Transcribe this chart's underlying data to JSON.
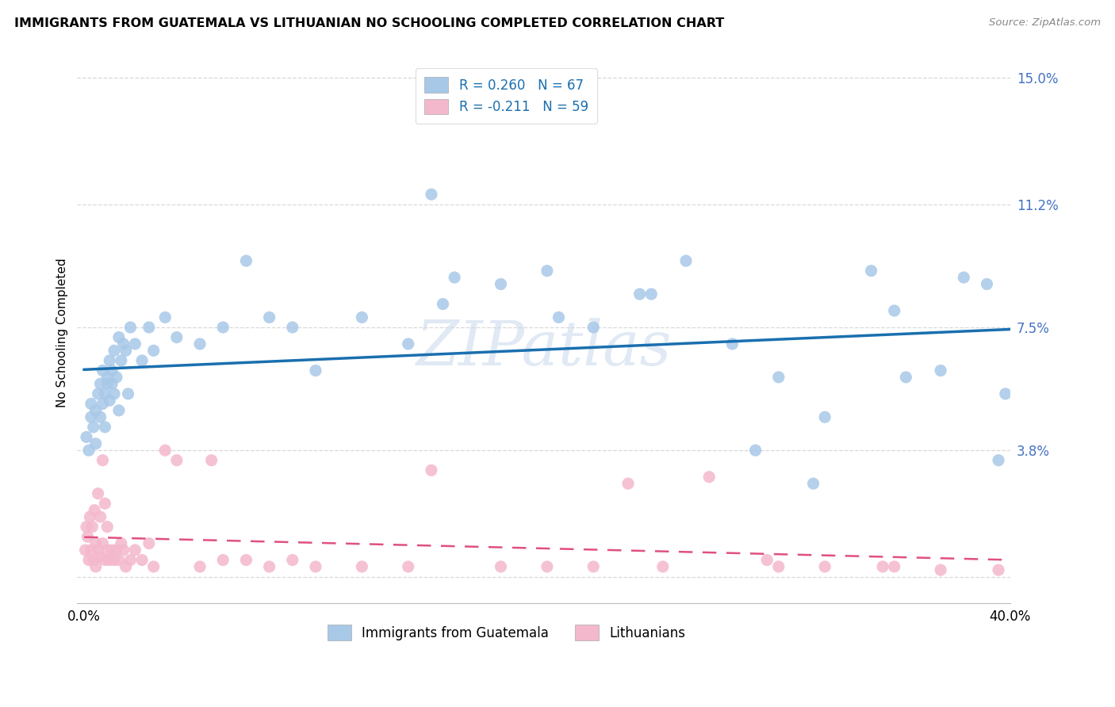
{
  "title": "IMMIGRANTS FROM GUATEMALA VS LITHUANIAN NO SCHOOLING COMPLETED CORRELATION CHART",
  "source": "Source: ZipAtlas.com",
  "ylabel": "No Schooling Completed",
  "xlim": [
    -0.3,
    40.0
  ],
  "ylim": [
    -0.8,
    15.5
  ],
  "y_gridlines": [
    0.0,
    3.8,
    7.5,
    11.2,
    15.0
  ],
  "y_tick_labels": [
    "",
    "3.8%",
    "7.5%",
    "11.2%",
    "15.0%"
  ],
  "x_tick_positions": [
    0,
    10,
    20,
    30,
    40
  ],
  "x_tick_labels": [
    "0.0%",
    "",
    "",
    "",
    "40.0%"
  ],
  "blue_color": "#a8c8e8",
  "pink_color": "#f4b8cc",
  "trend_blue_color": "#1a6faf",
  "trend_pink_color": "#e05080",
  "legend_line1_r": "R = 0.260",
  "legend_line1_n": "N = 67",
  "legend_line2_r": "R = -0.211",
  "legend_line2_n": "N = 59",
  "legend_label1": "Immigrants from Guatemala",
  "legend_label2": "Lithuanians",
  "blue_x": [
    0.1,
    0.2,
    0.3,
    0.3,
    0.4,
    0.5,
    0.5,
    0.6,
    0.7,
    0.7,
    0.8,
    0.8,
    0.9,
    0.9,
    1.0,
    1.0,
    1.1,
    1.1,
    1.2,
    1.2,
    1.3,
    1.3,
    1.4,
    1.5,
    1.5,
    1.6,
    1.7,
    1.8,
    1.9,
    2.0,
    2.2,
    2.5,
    2.8,
    3.0,
    3.5,
    4.0,
    5.0,
    6.0,
    7.0,
    8.0,
    9.0,
    10.0,
    12.0,
    14.0,
    15.0,
    16.0,
    18.0,
    20.0,
    22.0,
    24.0,
    26.0,
    28.0,
    30.0,
    32.0,
    34.0,
    35.0,
    37.0,
    38.0,
    39.0,
    39.5,
    39.8,
    15.5,
    20.5,
    24.5,
    29.0,
    31.5,
    35.5
  ],
  "blue_y": [
    4.2,
    3.8,
    5.2,
    4.8,
    4.5,
    5.0,
    4.0,
    5.5,
    4.8,
    5.8,
    5.2,
    6.2,
    5.5,
    4.5,
    6.0,
    5.8,
    5.3,
    6.5,
    5.8,
    6.2,
    5.5,
    6.8,
    6.0,
    7.2,
    5.0,
    6.5,
    7.0,
    6.8,
    5.5,
    7.5,
    7.0,
    6.5,
    7.5,
    6.8,
    7.8,
    7.2,
    7.0,
    7.5,
    9.5,
    7.8,
    7.5,
    6.2,
    7.8,
    7.0,
    11.5,
    9.0,
    8.8,
    9.2,
    7.5,
    8.5,
    9.5,
    7.0,
    6.0,
    4.8,
    9.2,
    8.0,
    6.2,
    9.0,
    8.8,
    3.5,
    5.5,
    8.2,
    7.8,
    8.5,
    3.8,
    2.8,
    6.0
  ],
  "pink_x": [
    0.05,
    0.1,
    0.15,
    0.2,
    0.25,
    0.3,
    0.35,
    0.4,
    0.45,
    0.5,
    0.5,
    0.6,
    0.6,
    0.7,
    0.7,
    0.8,
    0.8,
    0.9,
    0.9,
    1.0,
    1.0,
    1.1,
    1.2,
    1.3,
    1.4,
    1.5,
    1.6,
    1.7,
    1.8,
    2.0,
    2.2,
    2.5,
    2.8,
    3.0,
    3.5,
    4.0,
    5.0,
    5.5,
    6.0,
    7.0,
    8.0,
    9.0,
    10.0,
    12.0,
    14.0,
    15.0,
    18.0,
    20.0,
    22.0,
    25.0,
    27.0,
    30.0,
    32.0,
    35.0,
    37.0,
    23.5,
    29.5,
    34.5,
    39.5
  ],
  "pink_y": [
    0.8,
    1.5,
    1.2,
    0.5,
    1.8,
    0.8,
    1.5,
    0.5,
    2.0,
    1.0,
    0.3,
    0.8,
    2.5,
    0.6,
    1.8,
    1.0,
    3.5,
    0.5,
    2.2,
    0.8,
    1.5,
    0.5,
    0.8,
    0.5,
    0.8,
    0.5,
    1.0,
    0.8,
    0.3,
    0.5,
    0.8,
    0.5,
    1.0,
    0.3,
    3.8,
    3.5,
    0.3,
    3.5,
    0.5,
    0.5,
    0.3,
    0.5,
    0.3,
    0.3,
    0.3,
    3.2,
    0.3,
    0.3,
    0.3,
    0.3,
    3.0,
    0.3,
    0.3,
    0.3,
    0.2,
    2.8,
    0.5,
    0.3,
    0.2
  ]
}
